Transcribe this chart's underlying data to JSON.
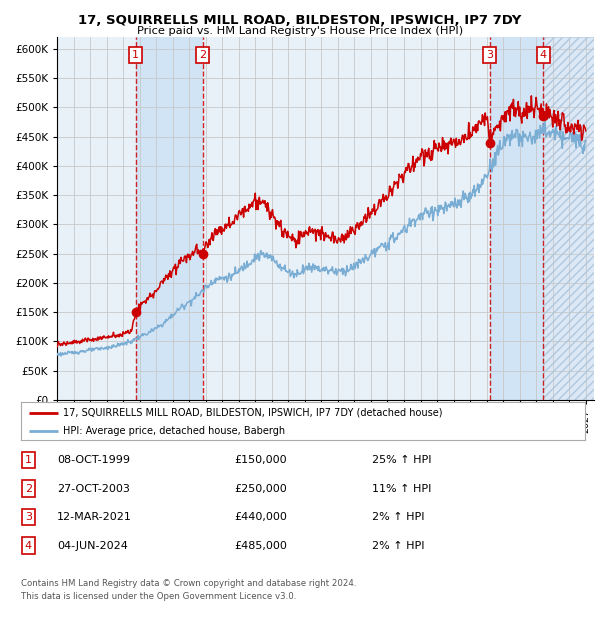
{
  "title": "17, SQUIRRELLS MILL ROAD, BILDESTON, IPSWICH, IP7 7DY",
  "subtitle": "Price paid vs. HM Land Registry's House Price Index (HPI)",
  "legend_line1": "17, SQUIRRELLS MILL ROAD, BILDESTON, IPSWICH, IP7 7DY (detached house)",
  "legend_line2": "HPI: Average price, detached house, Babergh",
  "footer1": "Contains HM Land Registry data © Crown copyright and database right 2024.",
  "footer2": "This data is licensed under the Open Government Licence v3.0.",
  "sale_color": "#cc0000",
  "hpi_color": "#7aadd4",
  "vline_color": "#cc0000",
  "grid_color": "#cccccc",
  "background_color": "#ffffff",
  "plot_bg_color": "#e8f0f8",
  "hatch_bg": "#dce8f5",
  "highlight_bg": "#d0e4f5",
  "ylim": [
    0,
    620000
  ],
  "yticks": [
    0,
    50000,
    100000,
    150000,
    200000,
    250000,
    300000,
    350000,
    400000,
    450000,
    500000,
    550000,
    600000
  ],
  "xmin": 1995,
  "xmax": 2027.5,
  "sale_dates_dec": [
    1999.77,
    2003.82,
    2021.19,
    2024.43
  ],
  "sale_prices": [
    150000,
    250000,
    440000,
    485000
  ],
  "transaction_labels": [
    {
      "num": "1",
      "date": "08-OCT-1999",
      "price": "£150,000",
      "info": "25% ↑ HPI"
    },
    {
      "num": "2",
      "date": "27-OCT-2003",
      "price": "£250,000",
      "info": "11% ↑ HPI"
    },
    {
      "num": "3",
      "date": "12-MAR-2021",
      "price": "£440,000",
      "info": "2% ↑ HPI"
    },
    {
      "num": "4",
      "date": "04-JUN-2024",
      "price": "£485,000",
      "info": "2% ↑ HPI"
    }
  ],
  "hpi_anchors": [
    [
      1995.0,
      78000
    ],
    [
      1995.5,
      79000
    ],
    [
      1996.0,
      81000
    ],
    [
      1996.5,
      83000
    ],
    [
      1997.0,
      85000
    ],
    [
      1997.5,
      87000
    ],
    [
      1998.0,
      89000
    ],
    [
      1998.5,
      92000
    ],
    [
      1999.0,
      96000
    ],
    [
      1999.5,
      100000
    ],
    [
      2000.0,
      108000
    ],
    [
      2000.5,
      114000
    ],
    [
      2001.0,
      122000
    ],
    [
      2001.5,
      132000
    ],
    [
      2002.0,
      145000
    ],
    [
      2002.5,
      158000
    ],
    [
      2003.0,
      168000
    ],
    [
      2003.5,
      178000
    ],
    [
      2004.0,
      192000
    ],
    [
      2004.5,
      205000
    ],
    [
      2005.0,
      208000
    ],
    [
      2005.5,
      210000
    ],
    [
      2006.0,
      220000
    ],
    [
      2006.5,
      232000
    ],
    [
      2007.0,
      245000
    ],
    [
      2007.5,
      248000
    ],
    [
      2008.0,
      242000
    ],
    [
      2008.5,
      230000
    ],
    [
      2009.0,
      218000
    ],
    [
      2009.5,
      215000
    ],
    [
      2010.0,
      225000
    ],
    [
      2010.5,
      228000
    ],
    [
      2011.0,
      224000
    ],
    [
      2011.5,
      222000
    ],
    [
      2012.0,
      220000
    ],
    [
      2012.5,
      222000
    ],
    [
      2013.0,
      228000
    ],
    [
      2013.5,
      238000
    ],
    [
      2014.0,
      248000
    ],
    [
      2014.5,
      258000
    ],
    [
      2015.0,
      268000
    ],
    [
      2015.5,
      278000
    ],
    [
      2016.0,
      290000
    ],
    [
      2016.5,
      305000
    ],
    [
      2017.0,
      315000
    ],
    [
      2017.5,
      320000
    ],
    [
      2018.0,
      325000
    ],
    [
      2018.5,
      328000
    ],
    [
      2019.0,
      332000
    ],
    [
      2019.5,
      340000
    ],
    [
      2020.0,
      348000
    ],
    [
      2020.5,
      360000
    ],
    [
      2021.0,
      385000
    ],
    [
      2021.5,
      415000
    ],
    [
      2022.0,
      440000
    ],
    [
      2022.5,
      455000
    ],
    [
      2023.0,
      445000
    ],
    [
      2023.5,
      448000
    ],
    [
      2024.0,
      452000
    ],
    [
      2024.5,
      460000
    ],
    [
      2025.0,
      455000
    ],
    [
      2025.5,
      450000
    ],
    [
      2026.0,
      448000
    ],
    [
      2026.5,
      445000
    ],
    [
      2027.0,
      443000
    ]
  ],
  "prop_anchors": [
    [
      1995.0,
      95000
    ],
    [
      1995.5,
      97000
    ],
    [
      1996.0,
      99000
    ],
    [
      1996.5,
      101000
    ],
    [
      1997.0,
      103000
    ],
    [
      1997.5,
      105000
    ],
    [
      1998.0,
      107000
    ],
    [
      1998.5,
      110000
    ],
    [
      1999.0,
      113000
    ],
    [
      1999.5,
      117000
    ],
    [
      1999.77,
      150000
    ],
    [
      2000.0,
      160000
    ],
    [
      2000.5,
      172000
    ],
    [
      2001.0,
      188000
    ],
    [
      2001.5,
      205000
    ],
    [
      2002.0,
      222000
    ],
    [
      2002.5,
      238000
    ],
    [
      2003.0,
      248000
    ],
    [
      2003.5,
      258000
    ],
    [
      2003.82,
      250000
    ],
    [
      2004.0,
      265000
    ],
    [
      2004.5,
      285000
    ],
    [
      2005.0,
      295000
    ],
    [
      2005.5,
      300000
    ],
    [
      2006.0,
      315000
    ],
    [
      2006.5,
      330000
    ],
    [
      2007.0,
      340000
    ],
    [
      2007.5,
      335000
    ],
    [
      2008.0,
      318000
    ],
    [
      2008.5,
      295000
    ],
    [
      2009.0,
      278000
    ],
    [
      2009.5,
      272000
    ],
    [
      2010.0,
      285000
    ],
    [
      2010.5,
      290000
    ],
    [
      2011.0,
      282000
    ],
    [
      2011.5,
      278000
    ],
    [
      2012.0,
      275000
    ],
    [
      2012.5,
      280000
    ],
    [
      2013.0,
      290000
    ],
    [
      2013.5,
      305000
    ],
    [
      2014.0,
      320000
    ],
    [
      2014.5,
      335000
    ],
    [
      2015.0,
      350000
    ],
    [
      2015.5,
      368000
    ],
    [
      2016.0,
      385000
    ],
    [
      2016.5,
      402000
    ],
    [
      2017.0,
      415000
    ],
    [
      2017.5,
      422000
    ],
    [
      2018.0,
      428000
    ],
    [
      2018.5,
      432000
    ],
    [
      2019.0,
      438000
    ],
    [
      2019.5,
      448000
    ],
    [
      2020.0,
      455000
    ],
    [
      2020.5,
      468000
    ],
    [
      2021.0,
      492000
    ],
    [
      2021.19,
      440000
    ],
    [
      2021.5,
      458000
    ],
    [
      2022.0,
      480000
    ],
    [
      2022.5,
      498000
    ],
    [
      2023.0,
      488000
    ],
    [
      2023.5,
      492000
    ],
    [
      2024.0,
      502000
    ],
    [
      2024.43,
      485000
    ],
    [
      2024.5,
      490000
    ],
    [
      2025.0,
      482000
    ],
    [
      2025.5,
      475000
    ],
    [
      2026.0,
      470000
    ],
    [
      2026.5,
      465000
    ],
    [
      2027.0,
      460000
    ]
  ]
}
